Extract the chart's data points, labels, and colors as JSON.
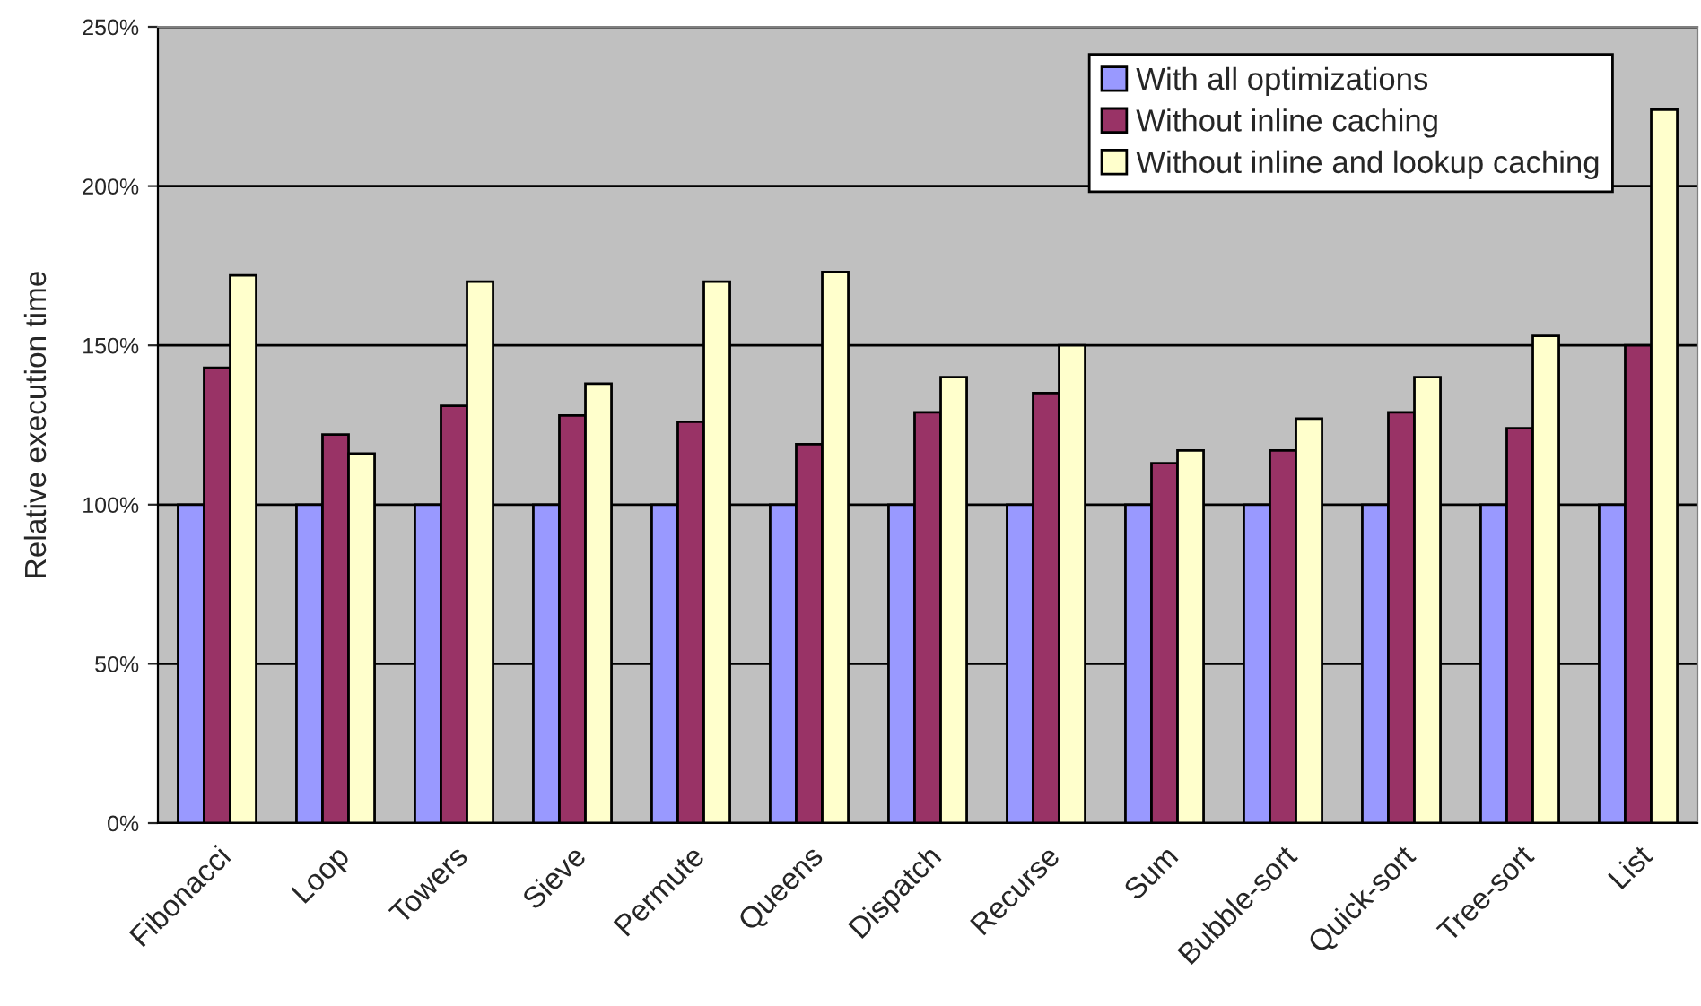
{
  "chart_data": {
    "type": "bar",
    "ylabel": "Relative execution time",
    "categories": [
      "Fibonacci",
      "Loop",
      "Towers",
      "Sieve",
      "Permute",
      "Queens",
      "Dispatch",
      "Recurse",
      "Sum",
      "Bubble-sort",
      "Quick-sort",
      "Tree-sort",
      "List"
    ],
    "series": [
      {
        "name": "With all optimizations",
        "color": "#9999ff",
        "values": [
          100,
          100,
          100,
          100,
          100,
          100,
          100,
          100,
          100,
          100,
          100,
          100,
          100
        ]
      },
      {
        "name": "Without inline caching",
        "color": "#993366",
        "values": [
          143,
          122,
          131,
          128,
          126,
          119,
          129,
          135,
          113,
          117,
          129,
          124,
          150
        ]
      },
      {
        "name": "Without inline and lookup caching",
        "color": "#ffffcc",
        "values": [
          172,
          116,
          170,
          138,
          170,
          173,
          140,
          150,
          117,
          127,
          140,
          153,
          224
        ]
      }
    ],
    "ylim": [
      0,
      250
    ],
    "yticks": [
      {
        "value": 0,
        "label": "0%"
      },
      {
        "value": 50,
        "label": "50%"
      },
      {
        "value": 100,
        "label": "100%"
      },
      {
        "value": 150,
        "label": "150%"
      },
      {
        "value": 200,
        "label": "200%"
      },
      {
        "value": 250,
        "label": "250%"
      }
    ],
    "grid": "y",
    "legend": "top right"
  }
}
